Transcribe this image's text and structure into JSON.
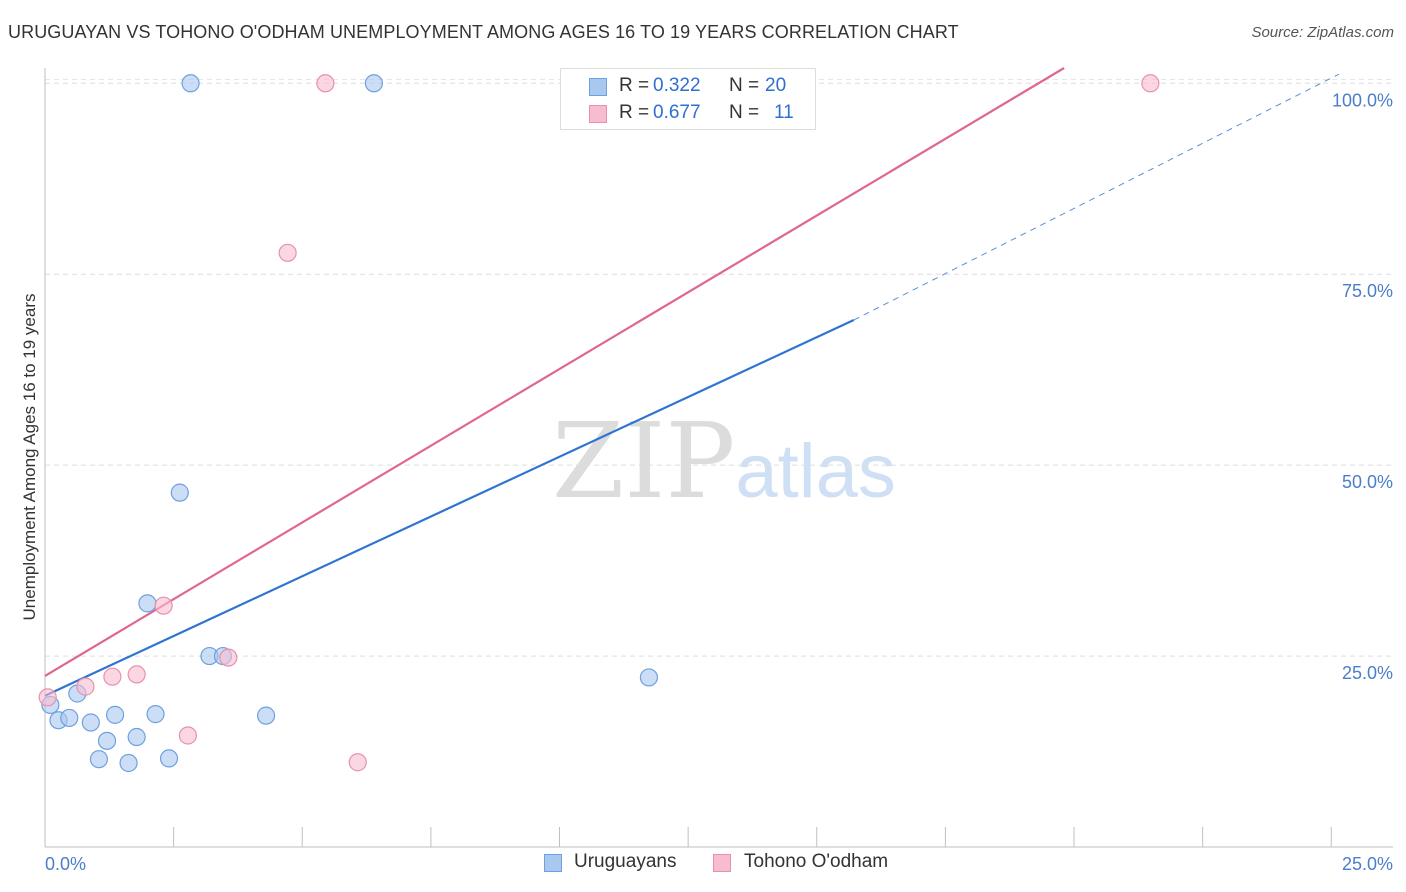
{
  "title": "URUGUAYAN VS TOHONO O'ODHAM UNEMPLOYMENT AMONG AGES 16 TO 19 YEARS CORRELATION CHART",
  "source": "Source: ZipAtlas.com",
  "watermark": {
    "zip": "ZIP",
    "atlas": "atlas"
  },
  "stats": [
    {
      "r_label": "R =",
      "r": "0.322",
      "n_label": "N =",
      "n": "20",
      "color": "#a8c8f0",
      "border": "#6fa0e0"
    },
    {
      "r_label": "R =",
      "r": "0.677",
      "n_label": "N =",
      "n": "11",
      "color": "#f8bcd0",
      "border": "#e890ae"
    }
  ],
  "legend": [
    {
      "label": "Uruguayans",
      "color": "#a8c8f0",
      "border": "#6fa0e0"
    },
    {
      "label": "Tohono O'odham",
      "color": "#f8bcd0",
      "border": "#e890ae"
    }
  ],
  "chart_data": {
    "type": "scatter",
    "title": "URUGUAYAN VS TOHONO O'ODHAM UNEMPLOYMENT AMONG AGES 16 TO 19 YEARS CORRELATION CHART",
    "xlabel": "",
    "ylabel": "Unemployment Among Ages 16 to 19 years",
    "xlim": [
      0,
      25
    ],
    "ylim": [
      0,
      102
    ],
    "x_ticks": [
      {
        "value": 0,
        "label": "0.0%"
      },
      {
        "value": 25,
        "label": "25.0%"
      }
    ],
    "y_ticks": [
      {
        "value": 25,
        "label": "25.0%"
      },
      {
        "value": 50,
        "label": "50.0%"
      },
      {
        "value": 75,
        "label": "75.0%"
      },
      {
        "value": 100,
        "label": "100.0%"
      }
    ],
    "series": [
      {
        "name": "Uruguayans",
        "color": "#6fa0e0",
        "fill": "#a8c8f0",
        "line_color": "#2f74d0",
        "points": [
          [
            0.1,
            18.6
          ],
          [
            0.25,
            16.6
          ],
          [
            0.45,
            16.9
          ],
          [
            0.6,
            20.1
          ],
          [
            0.85,
            16.3
          ],
          [
            1.0,
            11.5
          ],
          [
            1.15,
            13.9
          ],
          [
            1.3,
            17.3
          ],
          [
            1.55,
            11.0
          ],
          [
            1.7,
            14.4
          ],
          [
            1.9,
            31.9
          ],
          [
            2.05,
            17.4
          ],
          [
            2.3,
            11.6
          ],
          [
            2.5,
            46.4
          ],
          [
            2.7,
            100
          ],
          [
            3.05,
            25.0
          ],
          [
            3.3,
            25.0
          ],
          [
            4.1,
            17.2
          ],
          [
            6.1,
            100
          ],
          [
            11.2,
            22.2
          ]
        ],
        "trend": {
          "x0": 0,
          "y0": 19.8,
          "x1": 15,
          "y1": 69.0,
          "dashed_to_x": 24.0,
          "dashed_to_y": 101.2
        }
      },
      {
        "name": "Tohono O'odham",
        "color": "#e890ae",
        "fill": "#f8bcd0",
        "line_color": "#e0668e",
        "points": [
          [
            0.05,
            19.6
          ],
          [
            0.75,
            21.0
          ],
          [
            1.25,
            22.3
          ],
          [
            1.7,
            22.6
          ],
          [
            2.2,
            31.6
          ],
          [
            2.65,
            14.6
          ],
          [
            3.4,
            24.8
          ],
          [
            4.5,
            77.8
          ],
          [
            5.2,
            100
          ],
          [
            5.8,
            11.1
          ],
          [
            20.5,
            100
          ]
        ],
        "trend": {
          "x0": 0,
          "y0": 22.4,
          "x1": 18.9,
          "y1": 102.0
        }
      }
    ]
  }
}
